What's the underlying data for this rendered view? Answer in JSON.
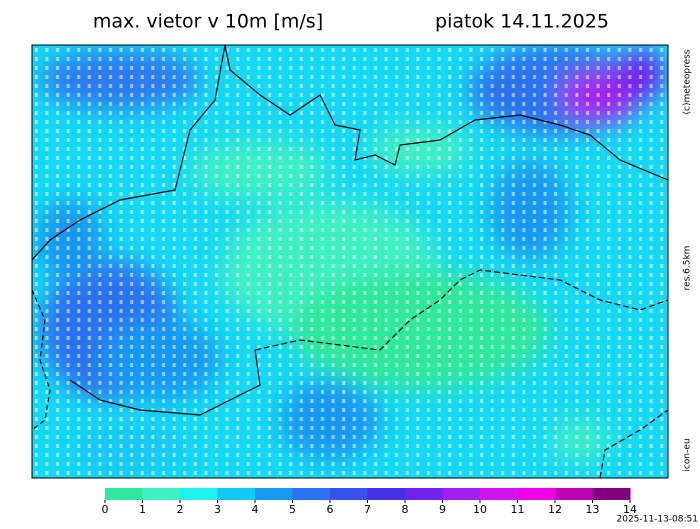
{
  "header": {
    "title": "max. vietor v 10m [m/s]",
    "date": "piatok 14.11.2025"
  },
  "side_labels": {
    "copyright": "(c)meteopress",
    "resolution": "res.6.5km",
    "model": "icon-eu"
  },
  "colorbar": {
    "ticks": [
      0,
      1,
      2,
      3,
      4,
      5,
      6,
      7,
      8,
      9,
      10,
      11,
      12,
      13,
      14
    ],
    "colors": [
      "#2ee89c",
      "#3ef0c4",
      "#1ef2ee",
      "#14c8f6",
      "#1898f2",
      "#2a72f0",
      "#3852ee",
      "#4432e8",
      "#7022f0",
      "#a020f0",
      "#d014f0",
      "#f000e6",
      "#c000b4",
      "#800080"
    ]
  },
  "timestamp": "2025-11-13-08:51"
}
